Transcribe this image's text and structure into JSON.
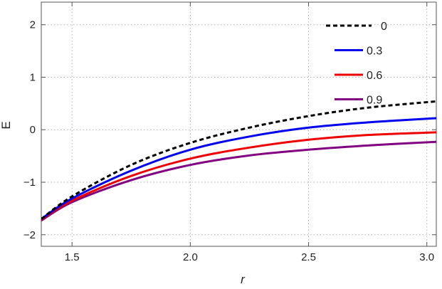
{
  "chart_data": {
    "type": "line",
    "title": "",
    "xlabel": "r",
    "ylabel": "E",
    "xlim": [
      1.37,
      3.04
    ],
    "ylim": [
      -2.22,
      2.43
    ],
    "x_ticks": [
      1.5,
      2.0,
      2.5,
      3.0
    ],
    "x_tick_labels": [
      "1.5",
      "2.0",
      "2.5",
      "3.0"
    ],
    "y_ticks": [
      -2,
      -1,
      0,
      1,
      2
    ],
    "y_tick_labels": [
      "−2",
      "−1",
      "0",
      "1",
      "2"
    ],
    "grid": true,
    "legend_position": "top-right",
    "x": [
      1.37,
      1.5,
      1.75,
      2.0,
      2.25,
      2.5,
      2.75,
      3.04
    ],
    "series": [
      {
        "name": "0",
        "color": "#000000",
        "dashed": true,
        "values": [
          -1.7,
          -1.27,
          -0.67,
          -0.25,
          0.04,
          0.26,
          0.42,
          0.54
        ]
      },
      {
        "name": "0.3",
        "color": "#0000ee",
        "dashed": false,
        "values": [
          -1.7,
          -1.31,
          -0.78,
          -0.38,
          -0.13,
          0.04,
          0.14,
          0.22
        ]
      },
      {
        "name": "0.6",
        "color": "#ee0000",
        "dashed": false,
        "values": [
          -1.71,
          -1.35,
          -0.88,
          -0.55,
          -0.34,
          -0.19,
          -0.1,
          -0.05
        ]
      },
      {
        "name": "0.9",
        "color": "#800080",
        "dashed": false,
        "values": [
          -1.73,
          -1.38,
          -0.96,
          -0.67,
          -0.49,
          -0.38,
          -0.3,
          -0.23
        ]
      }
    ]
  }
}
